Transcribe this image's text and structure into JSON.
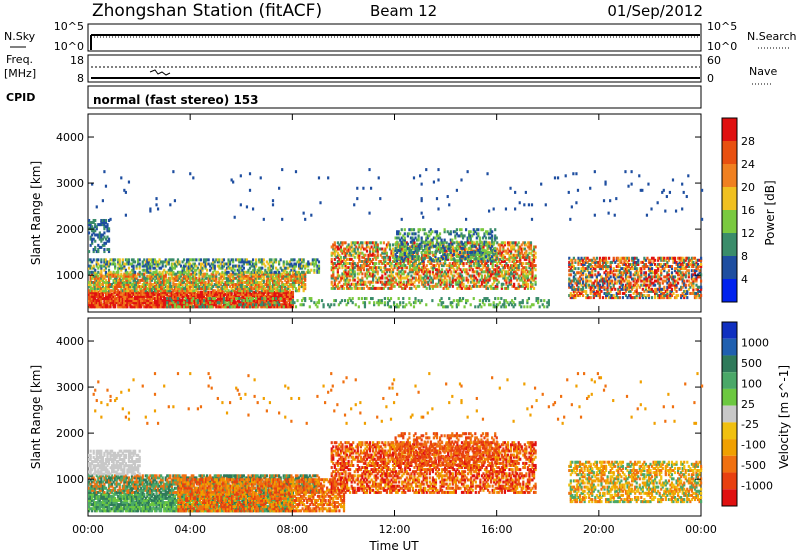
{
  "header": {
    "station": "Zhongshan Station (fitACF)",
    "beam": "Beam 12",
    "date": "01/Sep/2012"
  },
  "panels": {
    "nsky_label": "N.Sky",
    "nsearch_label": "N.Search",
    "nsky_ticks": [
      "10^5",
      "10^0"
    ],
    "nsearch_ticks": [
      "10^5",
      "10^0"
    ],
    "freq_label": "Freq.",
    "freq_unit": "[MHz]",
    "freq_ticks": [
      "18",
      "8"
    ],
    "nave_label": "Nave",
    "nave_ticks": [
      "60",
      "0"
    ],
    "cpid_label": "CPID",
    "cpid_value": "normal (fast stereo) 153"
  },
  "chart_data": [
    {
      "type": "heatmap",
      "name": "power",
      "ylabel": "Slant Range [km]",
      "ylim": [
        200,
        4500
      ],
      "yticks": [
        "1000",
        "2000",
        "3000",
        "4000"
      ],
      "colorbar_label": "Power [dB]",
      "colorbar_ticks": [
        "4",
        "8",
        "12",
        "16",
        "20",
        "24",
        "28"
      ],
      "colors": [
        "#0022ee",
        "#1e4ea0",
        "#3a8c6a",
        "#7ac940",
        "#f0c020",
        "#f08020",
        "#e85010",
        "#e01010"
      ]
    },
    {
      "type": "heatmap",
      "name": "velocity",
      "ylabel": "Slant Range [km]",
      "ylim": [
        200,
        4500
      ],
      "yticks": [
        "1000",
        "2000",
        "3000",
        "4000"
      ],
      "colorbar_label": "Velocity [m s^-1]",
      "colorbar_ticks": [
        "1000",
        "500",
        "100",
        "25",
        "-25",
        "-100",
        "-500",
        "-1000"
      ],
      "colors": [
        "#1030c0",
        "#2060b0",
        "#2f7a5a",
        "#4aa868",
        "#6cc840",
        "#c8c8c8",
        "#f0c010",
        "#f0a000",
        "#f07010",
        "#e84010",
        "#e01010"
      ]
    }
  ],
  "xaxis": {
    "label": "Time UT",
    "ticks": [
      "00:00",
      "04:00",
      "08:00",
      "12:00",
      "16:00",
      "20:00",
      "00:00"
    ]
  }
}
